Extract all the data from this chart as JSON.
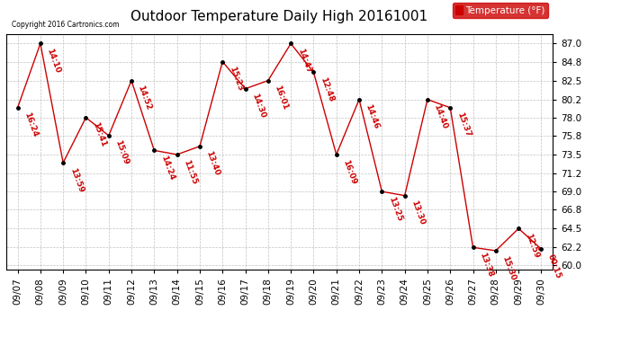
{
  "title": "Outdoor Temperature Daily High 20161001",
  "copyright": "Copyright 2016 Cartronics.com",
  "legend_label": "Temperature (°F)",
  "dates": [
    "09/07",
    "09/08",
    "09/09",
    "09/10",
    "09/11",
    "09/12",
    "09/13",
    "09/14",
    "09/15",
    "09/16",
    "09/17",
    "09/18",
    "09/19",
    "09/20",
    "09/21",
    "09/22",
    "09/23",
    "09/24",
    "09/25",
    "09/26",
    "09/27",
    "09/28",
    "09/29",
    "09/30"
  ],
  "times": [
    "16:24",
    "14:10",
    "13:59",
    "15:41",
    "15:09",
    "14:52",
    "14:24",
    "11:55",
    "13:40",
    "15:23",
    "14:30",
    "16:01",
    "14:47",
    "12:48",
    "16:09",
    "14:46",
    "13:25",
    "13:30",
    "14:40",
    "15:37",
    "13:38",
    "15:30",
    "12:59",
    "00:15"
  ],
  "temps": [
    79.2,
    87.0,
    72.5,
    78.0,
    75.8,
    82.5,
    74.0,
    73.5,
    74.5,
    84.8,
    81.5,
    82.5,
    87.0,
    83.5,
    73.5,
    80.2,
    69.0,
    68.5,
    80.2,
    79.2,
    62.2,
    61.8,
    64.5,
    62.0
  ],
  "ylim_min": 59.5,
  "ylim_max": 88.2,
  "yticks": [
    60.0,
    62.2,
    64.5,
    66.8,
    69.0,
    71.2,
    73.5,
    75.8,
    78.0,
    80.2,
    82.5,
    84.8,
    87.0
  ],
  "line_color": "#cc0000",
  "marker_color": "#000000",
  "label_color": "#cc0000",
  "legend_bg": "#cc0000",
  "legend_fg": "#ffffff",
  "bg_color": "#ffffff",
  "grid_color": "#bbbbbb",
  "title_fontsize": 11,
  "label_fontsize": 6.5,
  "tick_fontsize": 7.5
}
